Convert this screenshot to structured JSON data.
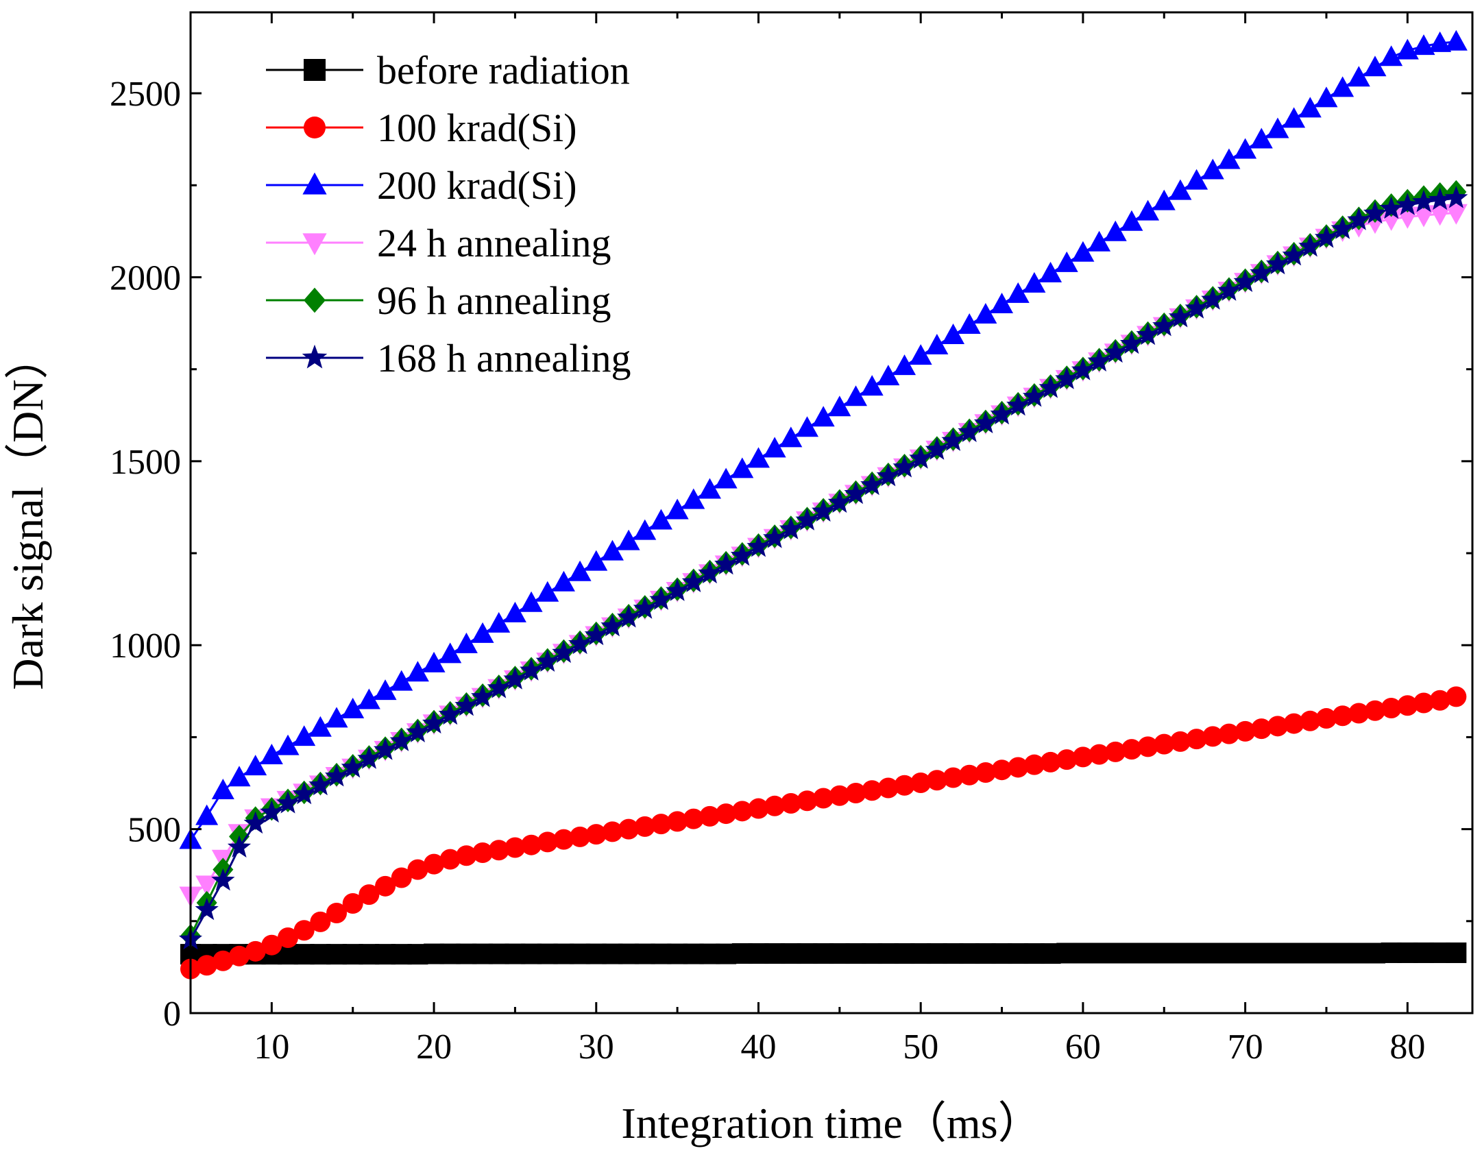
{
  "chart_data": {
    "type": "line",
    "xlabel": "Integration time（ms）",
    "ylabel": "Dark signal（DN）",
    "xlim": [
      5,
      84
    ],
    "ylim": [
      0,
      2720
    ],
    "x_ticks": [
      10,
      20,
      30,
      40,
      50,
      60,
      70,
      80
    ],
    "y_ticks": [
      0,
      500,
      1000,
      1500,
      2000,
      2500
    ],
    "x_tick_labels": [
      "10",
      "20",
      "30",
      "40",
      "50",
      "60",
      "70",
      "80"
    ],
    "y_tick_labels": [
      "0",
      "500",
      "1000",
      "1500",
      "2000",
      "2500"
    ],
    "grid": false,
    "legend_position": "top-left",
    "x": [
      5,
      6,
      7,
      8,
      9,
      10,
      11,
      12,
      13,
      14,
      15,
      16,
      17,
      18,
      19,
      20,
      21,
      22,
      23,
      24,
      25,
      26,
      27,
      28,
      29,
      30,
      31,
      32,
      33,
      34,
      35,
      36,
      37,
      38,
      39,
      40,
      41,
      42,
      43,
      44,
      45,
      46,
      47,
      48,
      49,
      50,
      51,
      52,
      53,
      54,
      55,
      56,
      57,
      58,
      59,
      60,
      61,
      62,
      63,
      64,
      65,
      66,
      67,
      68,
      69,
      70,
      71,
      72,
      73,
      74,
      75,
      76,
      77,
      78,
      79,
      80,
      81,
      82,
      83
    ],
    "series": [
      {
        "name": "before radiation",
        "color": "#000000",
        "marker": "square",
        "values": [
          160,
          160,
          160,
          160,
          160,
          160,
          160,
          160,
          160,
          160,
          160,
          160,
          160,
          160,
          160,
          161,
          161,
          161,
          161,
          161,
          161,
          161,
          161,
          161,
          161,
          161,
          161,
          161,
          161,
          161,
          161,
          161,
          161,
          161,
          162,
          162,
          162,
          162,
          162,
          162,
          162,
          162,
          162,
          162,
          162,
          162,
          162,
          162,
          162,
          162,
          162,
          162,
          162,
          162,
          163,
          163,
          163,
          163,
          163,
          163,
          163,
          163,
          163,
          163,
          163,
          163,
          163,
          163,
          163,
          163,
          163,
          163,
          163,
          163,
          164,
          164,
          164,
          164,
          164
        ]
      },
      {
        "name": "100 krad(Si)",
        "color": "#ff0000",
        "marker": "circle",
        "values": [
          120,
          130,
          142,
          155,
          168,
          185,
          205,
          225,
          248,
          272,
          298,
          322,
          345,
          368,
          390,
          405,
          418,
          428,
          436,
          443,
          450,
          457,
          465,
          472,
          479,
          486,
          493,
          500,
          507,
          514,
          521,
          528,
          535,
          542,
          549,
          556,
          563,
          570,
          577,
          584,
          591,
          598,
          605,
          612,
          619,
          626,
          633,
          640,
          647,
          654,
          661,
          668,
          675,
          682,
          689,
          696,
          703,
          710,
          717,
          724,
          731,
          738,
          745,
          752,
          759,
          766,
          773,
          780,
          787,
          794,
          801,
          808,
          815,
          822,
          829,
          836,
          843,
          850,
          860
        ]
      },
      {
        "name": "200 krad(Si)",
        "color": "#0000ff",
        "marker": "triangle-up",
        "values": [
          470,
          535,
          605,
          640,
          670,
          700,
          725,
          750,
          775,
          800,
          825,
          850,
          875,
          900,
          925,
          950,
          975,
          1002,
          1030,
          1058,
          1086,
          1114,
          1142,
          1170,
          1198,
          1226,
          1254,
          1282,
          1310,
          1338,
          1366,
          1394,
          1422,
          1450,
          1478,
          1506,
          1534,
          1562,
          1590,
          1618,
          1646,
          1674,
          1702,
          1730,
          1758,
          1786,
          1814,
          1842,
          1870,
          1898,
          1926,
          1954,
          1982,
          2010,
          2038,
          2066,
          2094,
          2122,
          2150,
          2178,
          2206,
          2234,
          2262,
          2290,
          2318,
          2346,
          2374,
          2402,
          2430,
          2458,
          2486,
          2514,
          2542,
          2570,
          2598,
          2616,
          2628,
          2636,
          2640
        ]
      },
      {
        "name": "24 h annealing",
        "color": "#ff80ff",
        "marker": "triangle-down",
        "values": [
          320,
          350,
          420,
          490,
          530,
          560,
          580,
          600,
          622,
          645,
          668,
          692,
          716,
          740,
          764,
          788,
          812,
          836,
          860,
          884,
          908,
          932,
          956,
          980,
          1004,
          1028,
          1052,
          1076,
          1100,
          1124,
          1148,
          1172,
          1196,
          1220,
          1244,
          1268,
          1292,
          1316,
          1340,
          1364,
          1388,
          1412,
          1436,
          1460,
          1484,
          1508,
          1532,
          1556,
          1580,
          1604,
          1628,
          1652,
          1676,
          1700,
          1724,
          1748,
          1772,
          1796,
          1820,
          1844,
          1868,
          1892,
          1916,
          1940,
          1964,
          1988,
          2012,
          2036,
          2060,
          2084,
          2108,
          2128,
          2140,
          2150,
          2158,
          2164,
          2168,
          2172,
          2175
        ]
      },
      {
        "name": "96 h annealing",
        "color": "#008000",
        "marker": "diamond",
        "values": [
          210,
          300,
          390,
          480,
          530,
          555,
          578,
          600,
          624,
          648,
          672,
          696,
          720,
          744,
          768,
          792,
          816,
          840,
          864,
          888,
          912,
          936,
          960,
          984,
          1008,
          1032,
          1056,
          1080,
          1104,
          1128,
          1152,
          1176,
          1200,
          1224,
          1248,
          1272,
          1296,
          1320,
          1344,
          1368,
          1392,
          1416,
          1440,
          1464,
          1488,
          1512,
          1536,
          1560,
          1584,
          1608,
          1632,
          1656,
          1680,
          1704,
          1728,
          1752,
          1776,
          1800,
          1824,
          1848,
          1872,
          1896,
          1920,
          1944,
          1968,
          1992,
          2016,
          2040,
          2064,
          2088,
          2112,
          2136,
          2160,
          2180,
          2196,
          2208,
          2218,
          2226,
          2232
        ]
      },
      {
        "name": "168 h annealing",
        "color": "#000080",
        "marker": "star",
        "values": [
          200,
          280,
          360,
          450,
          515,
          545,
          570,
          595,
          619,
          643,
          667,
          691,
          715,
          739,
          763,
          787,
          811,
          835,
          859,
          883,
          907,
          931,
          955,
          979,
          1003,
          1027,
          1051,
          1075,
          1099,
          1123,
          1147,
          1171,
          1195,
          1219,
          1243,
          1267,
          1291,
          1315,
          1339,
          1363,
          1387,
          1411,
          1435,
          1459,
          1483,
          1507,
          1531,
          1555,
          1579,
          1603,
          1627,
          1651,
          1675,
          1699,
          1723,
          1747,
          1771,
          1795,
          1819,
          1843,
          1867,
          1891,
          1915,
          1939,
          1963,
          1987,
          2011,
          2035,
          2059,
          2083,
          2107,
          2131,
          2155,
          2173,
          2186,
          2196,
          2204,
          2210,
          2215
        ]
      }
    ]
  }
}
